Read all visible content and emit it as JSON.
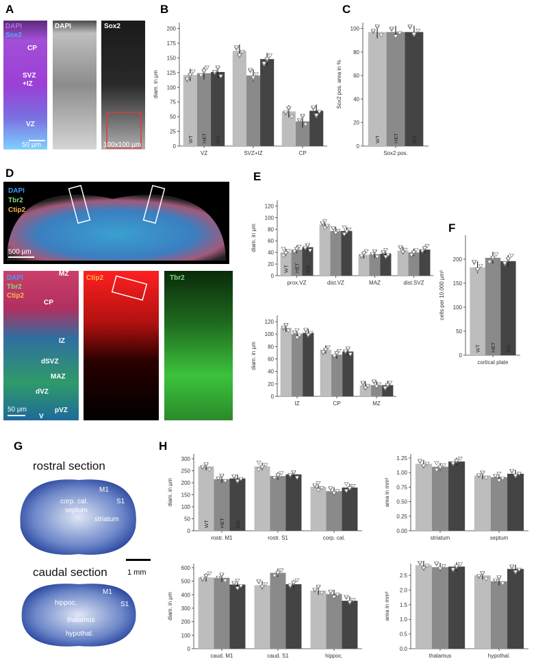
{
  "panel_letters": {
    "A": "A",
    "B": "B",
    "C": "C",
    "D": "D",
    "E": "E",
    "F": "F",
    "G": "G",
    "H": "H"
  },
  "legend_groups": [
    "WT",
    "HET",
    "KO"
  ],
  "colors": {
    "WT": "#bdbdbd",
    "HET": "#8a8a8a",
    "KO": "#444444",
    "dapi": "#8b3fc7",
    "sox2": "#54a9ff",
    "red": "#e53935",
    "green": "#3cba3c"
  },
  "images": {
    "A": {
      "merge_labels": [
        "DAPI",
        "Sox2"
      ],
      "dapi_title": "DAPI",
      "sox2_title": "Sox2",
      "zones": [
        "CP",
        "SVZ",
        "+IZ",
        "VZ"
      ],
      "scalebar": "50 µm",
      "roi": "100x100 µm"
    },
    "D_top": {
      "labels": [
        "DAPI",
        "Tbr2",
        "Ctip2"
      ],
      "scalebar": "500 µm"
    },
    "D_bottom": {
      "merge_labels": [
        "DAPI",
        "Tbr2",
        "Ctip2"
      ],
      "ctip2_title": "Ctip2",
      "tbr2_title": "Tbr2",
      "zones": [
        "MZ",
        "CP",
        "IZ",
        "dSVZ",
        "MAZ",
        "dVZ",
        "pVZ",
        "V"
      ],
      "scalebar": "50 µm"
    },
    "G": {
      "rostral_title": "rostral section",
      "caudal_title": "caudal section",
      "rostral_regions": [
        "M1",
        "corp. cal.",
        "S1",
        "septum",
        "striatum"
      ],
      "caudal_regions": [
        "M1",
        "hippoc.",
        "S1",
        "thalamus",
        "hypothal."
      ],
      "scalebar": "1 mm"
    }
  },
  "chart_data": [
    {
      "id": "B",
      "type": "bar",
      "ylabel": "diam. in µm",
      "ylim": [
        0,
        210
      ],
      "yticks": [
        0,
        25,
        50,
        75,
        100,
        125,
        150,
        175,
        200
      ],
      "categories": [
        "VZ",
        "SVZ+IZ",
        "CP"
      ],
      "series": [
        {
          "name": "WT",
          "values": [
            121,
            162,
            59
          ]
        },
        {
          "name": "HET",
          "values": [
            124,
            120,
            42
          ]
        },
        {
          "name": "KO",
          "values": [
            126,
            148,
            60
          ]
        }
      ],
      "show_bar_labels": true
    },
    {
      "id": "C",
      "type": "bar",
      "ylabel": "Sox2 pos. area in %",
      "ylim": [
        0,
        105
      ],
      "yticks": [
        0,
        20,
        40,
        60,
        80,
        100
      ],
      "categories": [
        "Sox2 pos."
      ],
      "series": [
        {
          "name": "WT",
          "values": [
            97
          ]
        },
        {
          "name": "HET",
          "values": [
            97
          ]
        },
        {
          "name": "KO",
          "values": [
            97
          ]
        }
      ],
      "show_bar_labels": true
    },
    {
      "id": "E1",
      "type": "bar",
      "ylabel": "diam. in µm",
      "ylim": [
        0,
        130
      ],
      "yticks": [
        0,
        20,
        40,
        60,
        80,
        100,
        120
      ],
      "categories": [
        "prox.VZ",
        "dist.VZ",
        "MAZ",
        "dist.SVZ"
      ],
      "series": [
        {
          "name": "WT",
          "values": [
            40,
            88,
            36,
            43
          ]
        },
        {
          "name": "HET",
          "values": [
            45,
            77,
            37,
            40
          ]
        },
        {
          "name": "KO",
          "values": [
            49,
            77,
            38,
            45
          ]
        }
      ],
      "show_bar_labels": true
    },
    {
      "id": "E2",
      "type": "bar",
      "ylabel": "diam. in µm",
      "ylim": [
        0,
        130
      ],
      "yticks": [
        0,
        20,
        40,
        60,
        80,
        100,
        120
      ],
      "categories": [
        "IZ",
        "CP",
        "MZ"
      ],
      "series": [
        {
          "name": "WT",
          "values": [
            110,
            75,
            18
          ]
        },
        {
          "name": "HET",
          "values": [
            100,
            67,
            18
          ]
        },
        {
          "name": "KO",
          "values": [
            102,
            72,
            18
          ]
        }
      ],
      "show_bar_labels": false
    },
    {
      "id": "F",
      "type": "bar",
      "ylabel": "cells per 10.000 µm²",
      "ylim": [
        0,
        250
      ],
      "yticks": [
        0,
        50,
        100,
        150,
        200
      ],
      "categories": [
        "cortical plate"
      ],
      "series": [
        {
          "name": "WT",
          "values": [
            183
          ]
        },
        {
          "name": "HET",
          "values": [
            203
          ]
        },
        {
          "name": "KO",
          "values": [
            196
          ]
        }
      ],
      "show_bar_labels": true
    },
    {
      "id": "H1",
      "type": "bar",
      "ylabel": "diam. in µm",
      "ylim": [
        0,
        320
      ],
      "yticks": [
        0,
        50,
        100,
        150,
        200,
        250,
        300
      ],
      "categories": [
        "rostr. M1",
        "rostr. S1",
        "corp. cal."
      ],
      "series": [
        {
          "name": "WT",
          "values": [
            268,
            268,
            183
          ]
        },
        {
          "name": "HET",
          "values": [
            215,
            228,
            165
          ]
        },
        {
          "name": "KO",
          "values": [
            218,
            235,
            180
          ]
        }
      ],
      "show_bar_labels": true
    },
    {
      "id": "H2",
      "type": "bar",
      "ylabel": "area in mm²",
      "ylim": [
        0,
        1.32
      ],
      "yticks": [
        0,
        0.25,
        0.5,
        0.75,
        1.0,
        1.25
      ],
      "tickfmt": 2,
      "categories": [
        "striatum",
        "septum"
      ],
      "series": [
        {
          "name": "WT",
          "values": [
            1.15,
            0.95
          ]
        },
        {
          "name": "HET",
          "values": [
            1.1,
            0.92
          ]
        },
        {
          "name": "KO",
          "values": [
            1.19,
            0.98
          ]
        }
      ],
      "show_bar_labels": false
    },
    {
      "id": "H3",
      "type": "bar",
      "ylabel": "diam. in µm",
      "ylim": [
        0,
        630
      ],
      "yticks": [
        0,
        100,
        200,
        300,
        400,
        500,
        600
      ],
      "categories": [
        "caud. M1",
        "caud. S1",
        "hippoc."
      ],
      "series": [
        {
          "name": "WT",
          "values": [
            528,
            470,
            430
          ]
        },
        {
          "name": "HET",
          "values": [
            525,
            562,
            405
          ]
        },
        {
          "name": "KO",
          "values": [
            475,
            478,
            355
          ]
        }
      ],
      "show_bar_labels": false
    },
    {
      "id": "H4",
      "type": "bar",
      "ylabel": "area in mm²",
      "ylim": [
        0,
        2.9
      ],
      "yticks": [
        0,
        0.5,
        1.0,
        1.5,
        2.0,
        2.5
      ],
      "tickfmt": 1,
      "categories": [
        "thalamus",
        "hypothal."
      ],
      "series": [
        {
          "name": "WT",
          "values": [
            2.85,
            2.5
          ]
        },
        {
          "name": "HET",
          "values": [
            2.78,
            2.3
          ]
        },
        {
          "name": "KO",
          "values": [
            2.8,
            2.72
          ]
        }
      ],
      "show_bar_labels": false
    }
  ]
}
